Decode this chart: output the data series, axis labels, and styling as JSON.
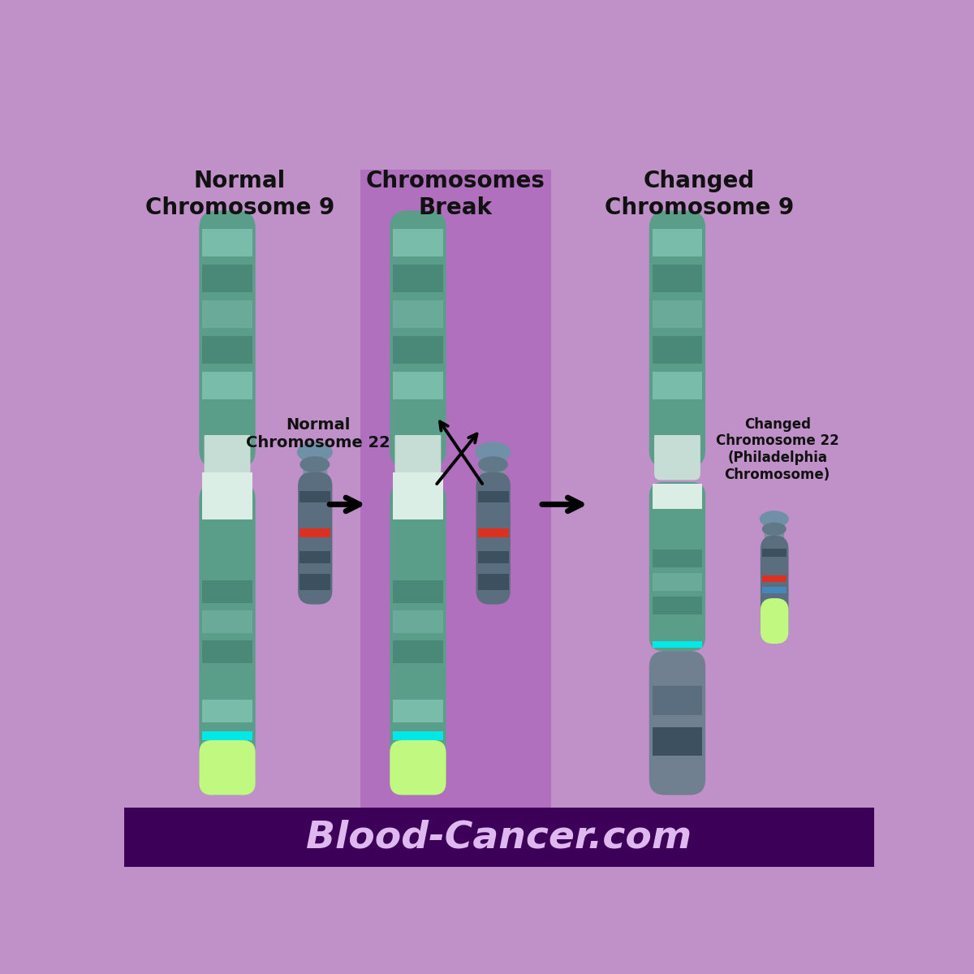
{
  "bg_color": "#c090c8",
  "center_bg_color": "#b070be",
  "footer_bg_color": "#3d0058",
  "footer_text": "Blood-Cancer.com",
  "footer_text_color": "#e0b8f0",
  "title_col1": "Normal\nChromosome 9",
  "title_col2": "Chromosomes\nBreak",
  "title_col3": "Changed\nChromosome 9",
  "label_chr22_normal": "Normal\nChromosome 22",
  "label_chr22_changed": "Changed\nChromosome 22\n(Philadelphia\nChromosome)",
  "text_color": "#111111",
  "chr9_base": "#5a9e8a",
  "chr9_light": "#7abcaa",
  "chr9_dark": "#4a8878",
  "chr9_mid": "#6aaa98",
  "chr9_pale": "#8acaba",
  "chr9_centromere": "#c5ddd5",
  "chr9_white_band": "#daeee6",
  "chr9_lime": "#c0f880",
  "chr9_cyan": "#00e8e8",
  "chr22_top": "#7090a8",
  "chr22_body": "#5a6e80",
  "chr22_dark": "#3d5060",
  "chr22_red": "#dd3020",
  "chr22_steelblue_light": "#708090"
}
